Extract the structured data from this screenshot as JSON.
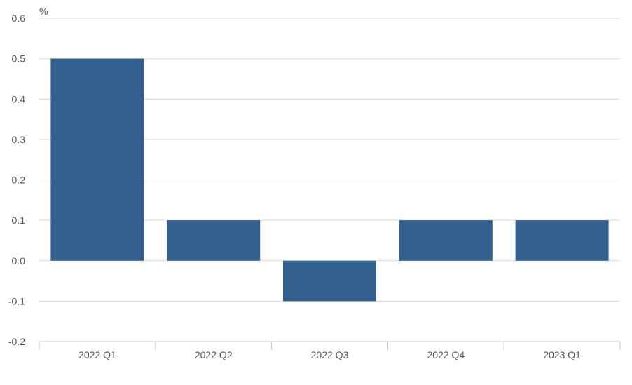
{
  "chart_data": {
    "type": "bar",
    "title": "",
    "xlabel": "",
    "ylabel": "%",
    "categories": [
      "2022 Q1",
      "2022 Q2",
      "2022 Q3",
      "2022 Q4",
      "2023 Q1"
    ],
    "values": [
      0.5,
      0.1,
      -0.1,
      0.1,
      0.1
    ],
    "ylim": [
      -0.2,
      0.6
    ],
    "yticks": [
      "0.6",
      "0.5",
      "0.4",
      "0.3",
      "0.2",
      "0.1",
      "0.0",
      "-0.1",
      "-0.2"
    ],
    "grid": true,
    "legend": "none",
    "colors": {
      "bar": "#32608F",
      "grid": "#D9D9D9",
      "axis": "#B9C4D0",
      "text": "#555555"
    }
  }
}
